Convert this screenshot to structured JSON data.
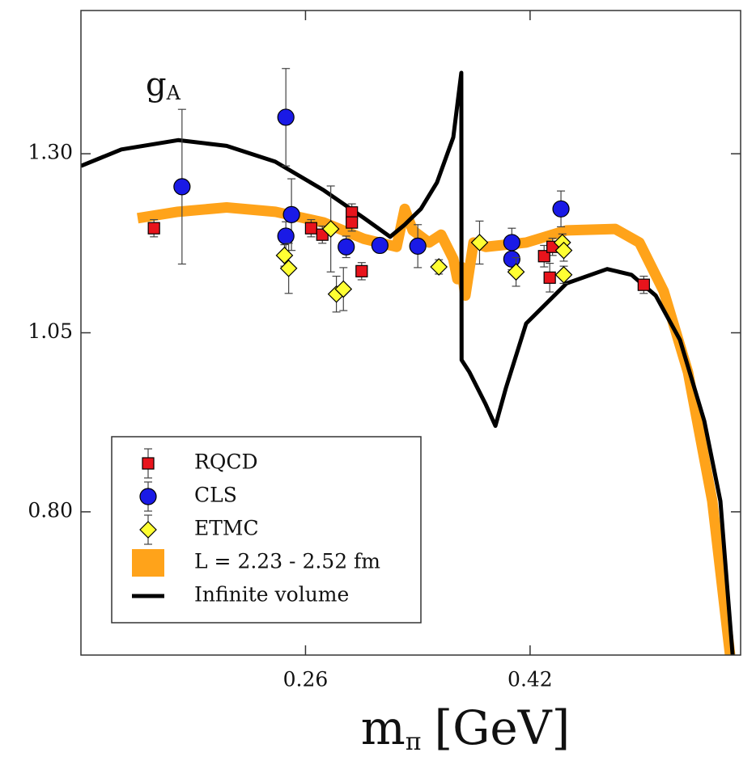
{
  "chart_data": {
    "type": "scatter",
    "annotation": {
      "text": "g",
      "sub": "A"
    },
    "xlabel": {
      "text": "m",
      "sub": "π",
      "unit": "[GeV]"
    },
    "xlim": [
      0.1,
      0.57
    ],
    "ylim": [
      0.6,
      1.5
    ],
    "xticks": [
      0.26,
      0.42
    ],
    "yticks": [
      {
        "value": 0.8,
        "label": "0.80"
      },
      1.05,
      {
        "value": 1.3,
        "label": "1.30"
      }
    ],
    "legend": "lower left",
    "series": [
      {
        "name": "RQCD",
        "color": "#e8141c",
        "marker": "square",
        "x": [
          0.152,
          0.264,
          0.272,
          0.293,
          0.293,
          0.3,
          0.43,
          0.434,
          0.436,
          0.501
        ],
        "values": [
          1.196,
          1.196,
          1.187,
          1.218,
          1.204,
          1.136,
          1.157,
          1.127,
          1.17,
          1.117
        ],
        "errors": [
          0.012,
          0.012,
          0.012,
          0.012,
          0.012,
          0.012,
          0.015,
          0.02,
          0.012,
          0.012
        ]
      },
      {
        "name": "CLS",
        "color": "#1a1ae6",
        "marker": "circle",
        "x": [
          0.172,
          0.246,
          0.25,
          0.246,
          0.289,
          0.313,
          0.34,
          0.407,
          0.407,
          0.442
        ],
        "values": [
          1.254,
          1.351,
          1.215,
          1.185,
          1.17,
          1.172,
          1.171,
          1.176,
          1.153,
          1.223
        ],
        "errors": [
          0.108,
          0.068,
          0.05,
          0.02,
          0.015,
          0.01,
          0.03,
          0.02,
          0.015,
          0.025
        ]
      },
      {
        "name": "ETMC",
        "color": "#ffff33",
        "marker": "diamond",
        "x": [
          0.245,
          0.248,
          0.278,
          0.282,
          0.287,
          0.355,
          0.384,
          0.41,
          0.443,
          0.444,
          0.444
        ],
        "values": [
          1.158,
          1.14,
          1.195,
          1.104,
          1.111,
          1.142,
          1.176,
          1.135,
          1.176,
          1.165,
          1.131
        ],
        "errors": [
          0.015,
          0.035,
          0.06,
          0.025,
          0.03,
          0.01,
          0.03,
          0.02,
          0.012,
          0.015,
          0.012
        ]
      },
      {
        "name": "L = 2.23 - 2.52 fm",
        "color": "#ffa31a",
        "line": "band",
        "x": [
          0.1404,
          0.1692,
          0.2038,
          0.2384,
          0.273,
          0.3018,
          0.3249,
          0.3307,
          0.3364,
          0.348,
          0.3566,
          0.3653,
          0.3682,
          0.371,
          0.3739,
          0.3797,
          0.3884,
          0.4172,
          0.446,
          0.4806,
          0.4979,
          0.5152,
          0.5325,
          0.5498,
          0.5625
        ],
        "values": [
          1.21,
          1.219,
          1.225,
          1.219,
          1.204,
          1.181,
          1.17,
          1.223,
          1.193,
          1.176,
          1.187,
          1.153,
          1.125,
          1.142,
          1.102,
          1.176,
          1.17,
          1.176,
          1.193,
          1.195,
          1.176,
          1.108,
          0.995,
          0.815,
          0.6
        ]
      },
      {
        "name": "Infinite volume",
        "color": "#000000",
        "line": "solid",
        "x": [
          0.1,
          0.1288,
          0.1692,
          0.2038,
          0.2384,
          0.273,
          0.3018,
          0.3203,
          0.3307,
          0.3422,
          0.3537,
          0.3653,
          0.371,
          0.3712,
          0.3768,
          0.3884,
          0.3953,
          0.4028,
          0.4172,
          0.446,
          0.4749,
          0.4922,
          0.5095,
          0.5268,
          0.5441,
          0.5556,
          0.5643
        ],
        "values": [
          1.283,
          1.306,
          1.319,
          1.311,
          1.289,
          1.249,
          1.21,
          1.184,
          1.201,
          1.223,
          1.26,
          1.323,
          1.413,
          1.012,
          0.995,
          0.95,
          0.92,
          0.973,
          1.063,
          1.119,
          1.139,
          1.131,
          1.102,
          1.04,
          0.927,
          0.815,
          0.6
        ]
      }
    ]
  }
}
